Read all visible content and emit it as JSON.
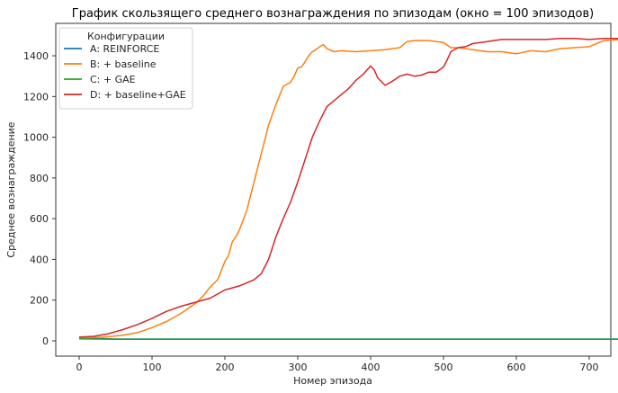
{
  "chart_data": {
    "type": "line",
    "title": "График скользящего среднего вознаграждения по эпизодам (окно = 100 эпизодов)",
    "xlabel": "Номер эпизода",
    "ylabel": "Среднее вознаграждение",
    "xlim": [
      -35,
      785
    ],
    "ylim": [
      -75,
      1545
    ],
    "xticks": [
      0,
      100,
      200,
      300,
      400,
      500,
      600,
      700
    ],
    "yticks": [
      0,
      200,
      400,
      600,
      800,
      1000,
      1200,
      1400
    ],
    "grid": false,
    "legend": {
      "title": "Конфигурации",
      "position": "upper left"
    },
    "series": [
      {
        "name": "A: REINFORCE",
        "color": "#1f77b4",
        "x": [
          0,
          20,
          50,
          100,
          200,
          300,
          400,
          500,
          600,
          700,
          745
        ],
        "y": [
          18,
          12,
          9,
          9,
          9,
          9,
          9,
          9,
          9,
          9,
          9
        ]
      },
      {
        "name": "B: + baseline",
        "color": "#ff7f0e",
        "x": [
          0,
          20,
          40,
          60,
          80,
          100,
          120,
          140,
          160,
          170,
          180,
          190,
          195,
          200,
          205,
          210,
          215,
          220,
          230,
          240,
          250,
          260,
          270,
          280,
          290,
          295,
          300,
          305,
          310,
          315,
          320,
          325,
          330,
          335,
          340,
          350,
          360,
          380,
          400,
          420,
          440,
          450,
          460,
          480,
          500,
          510,
          520,
          540,
          560,
          580,
          600,
          620,
          640,
          660,
          680,
          700,
          720,
          745
        ],
        "y": [
          15,
          16,
          20,
          28,
          40,
          65,
          95,
          135,
          185,
          220,
          265,
          300,
          345,
          390,
          420,
          485,
          510,
          545,
          640,
          780,
          920,
          1060,
          1160,
          1250,
          1270,
          1300,
          1340,
          1345,
          1370,
          1400,
          1420,
          1430,
          1445,
          1455,
          1435,
          1420,
          1425,
          1420,
          1425,
          1430,
          1440,
          1470,
          1475,
          1475,
          1465,
          1440,
          1440,
          1430,
          1420,
          1420,
          1410,
          1425,
          1420,
          1435,
          1440,
          1445,
          1475,
          1480
        ]
      },
      {
        "name": "C: + GAE",
        "color": "#2ca02c",
        "x": [
          0,
          20,
          50,
          100,
          200,
          300,
          400,
          500,
          600,
          700,
          745
        ],
        "y": [
          10,
          9,
          8,
          8,
          8,
          8,
          8,
          8,
          8,
          8,
          8
        ]
      },
      {
        "name": "D: + baseline+GAE",
        "color": "#d62728",
        "x": [
          0,
          20,
          40,
          60,
          80,
          100,
          120,
          140,
          160,
          180,
          200,
          220,
          240,
          250,
          260,
          270,
          280,
          290,
          300,
          310,
          320,
          330,
          340,
          350,
          360,
          370,
          380,
          390,
          400,
          405,
          410,
          420,
          430,
          440,
          450,
          460,
          470,
          480,
          490,
          500,
          505,
          510,
          520,
          530,
          540,
          560,
          580,
          600,
          620,
          640,
          660,
          680,
          700,
          720,
          745
        ],
        "y": [
          18,
          22,
          35,
          55,
          80,
          110,
          145,
          170,
          190,
          210,
          250,
          270,
          300,
          330,
          400,
          510,
          600,
          680,
          780,
          890,
          1000,
          1080,
          1150,
          1180,
          1210,
          1240,
          1280,
          1310,
          1350,
          1330,
          1290,
          1255,
          1275,
          1300,
          1310,
          1300,
          1305,
          1320,
          1320,
          1345,
          1380,
          1420,
          1440,
          1445,
          1460,
          1470,
          1480,
          1480,
          1480,
          1480,
          1485,
          1485,
          1480,
          1485,
          1485
        ]
      }
    ]
  }
}
